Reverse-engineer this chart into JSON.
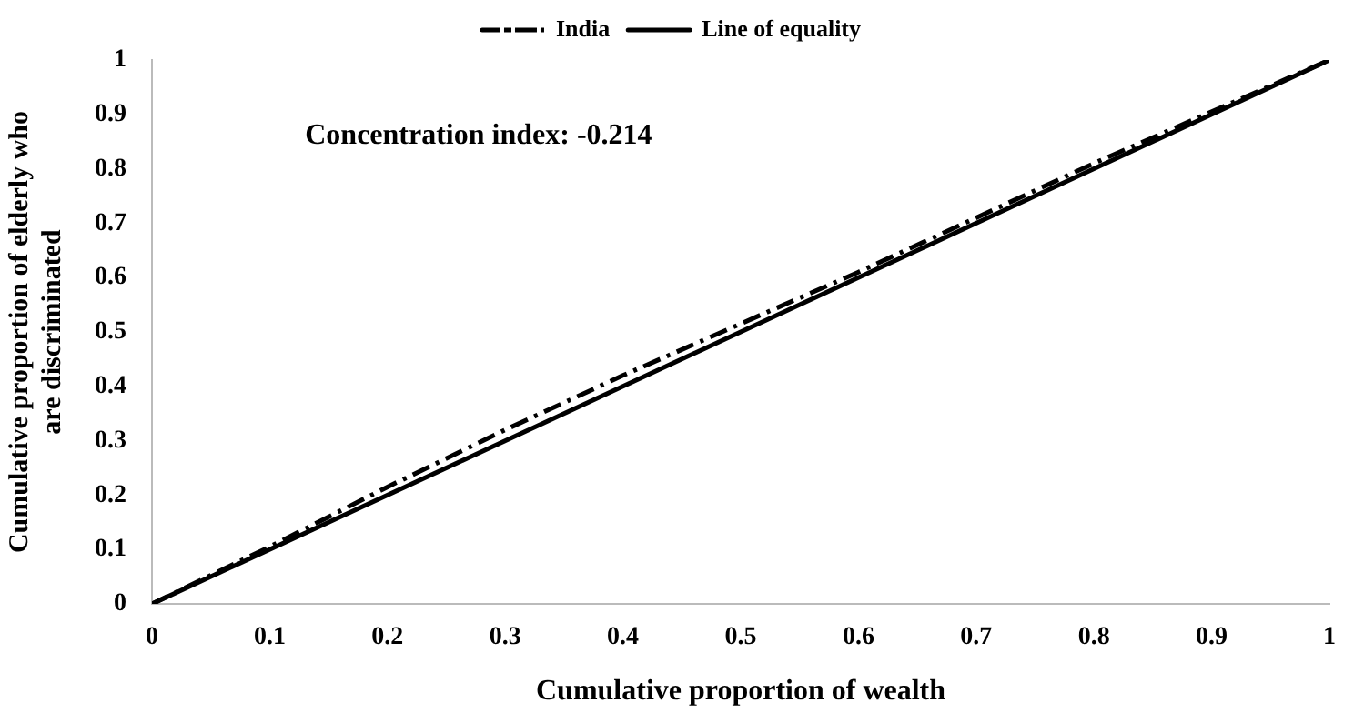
{
  "chart_data": {
    "type": "line",
    "xlabel": "Cumulative proportion of wealth",
    "ylabel": "Cumulative proportion of elderly who are discriminated",
    "annotations": [
      "Concentration index: -0.214"
    ],
    "legend": "top",
    "grid": false,
    "marker": "none",
    "xlim": [
      0,
      1
    ],
    "xticks": [
      0,
      0.1,
      0.2,
      0.3,
      0.4,
      0.5,
      0.6,
      0.7,
      0.8,
      0.9,
      1
    ],
    "ylim": [
      0,
      1
    ],
    "yticks": [
      0,
      0.1,
      0.2,
      0.3,
      0.4,
      0.5,
      0.6,
      0.7,
      0.8,
      0.9,
      1
    ],
    "series": [
      {
        "name": "India",
        "color": "#000000",
        "line_style": "dashed",
        "x": [
          0,
          0.1,
          0.2,
          0.3,
          0.4,
          0.5,
          0.6,
          0.7,
          0.8,
          0.9,
          1
        ],
        "values": [
          0,
          0.105,
          0.215,
          0.32,
          0.42,
          0.515,
          0.61,
          0.71,
          0.81,
          0.905,
          1
        ]
      },
      {
        "name": "Line of equality",
        "color": "#000000",
        "line_style": "solid",
        "x": [
          0,
          1
        ],
        "values": [
          0,
          1
        ]
      }
    ]
  }
}
